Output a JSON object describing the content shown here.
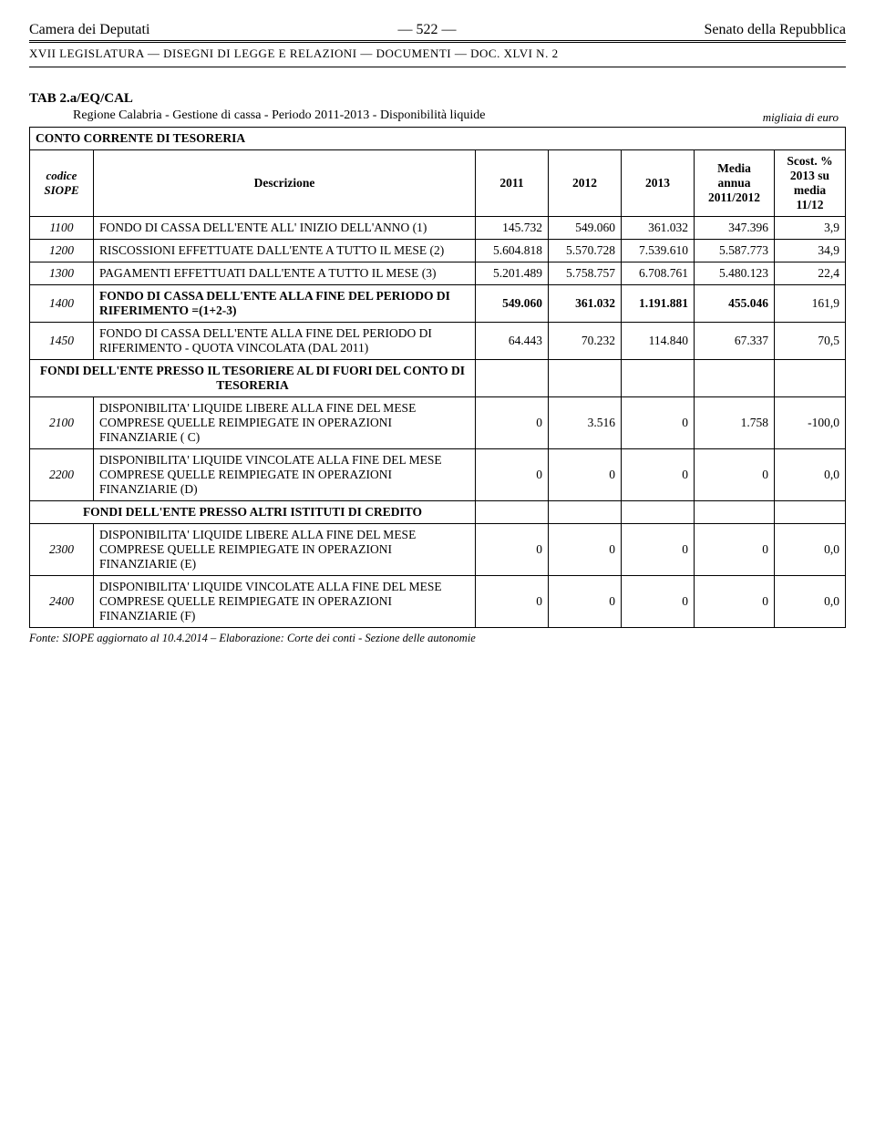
{
  "header": {
    "left": "Camera dei Deputati",
    "center": "— 522 —",
    "right": "Senato della Repubblica",
    "subheader": "XVII LEGISLATURA — DISEGNI DI LEGGE E RELAZIONI — DOCUMENTI — DOC. XLVI N. 2"
  },
  "tab": {
    "code": "TAB 2.a/EQ/CAL",
    "title": "Regione Calabria - Gestione di cassa - Periodo 2011-2013 - Disponibilità liquide",
    "unit": "migliaia di euro"
  },
  "section1_title": "CONTO CORRENTE DI TESORERIA",
  "columns": {
    "codice": "codice SIOPE",
    "descrizione": "Descrizione",
    "y2011": "2011",
    "y2012": "2012",
    "y2013": "2013",
    "media": "Media annua 2011/2012",
    "scost": "Scost. % 2013 su media 11/12"
  },
  "rows": [
    {
      "code": "1100",
      "desc": "FONDO DI CASSA DELL'ENTE ALL' INIZIO DELL'ANNO (1)",
      "v": [
        "145.732",
        "549.060",
        "361.032",
        "347.396",
        "3,9"
      ],
      "bold": false
    },
    {
      "code": "1200",
      "desc": "RISCOSSIONI EFFETTUATE DALL'ENTE A TUTTO IL MESE (2)",
      "v": [
        "5.604.818",
        "5.570.728",
        "7.539.610",
        "5.587.773",
        "34,9"
      ],
      "bold": false
    },
    {
      "code": "1300",
      "desc": "PAGAMENTI EFFETTUATI DALL'ENTE A TUTTO IL MESE (3)",
      "v": [
        "5.201.489",
        "5.758.757",
        "6.708.761",
        "5.480.123",
        "22,4"
      ],
      "bold": false
    },
    {
      "code": "1400",
      "desc": "FONDO DI CASSA DELL'ENTE ALLA FINE DEL PERIODO DI RIFERIMENTO =(1+2-3)",
      "v": [
        "549.060",
        "361.032",
        "1.191.881",
        "455.046",
        "161,9"
      ],
      "bold": true
    },
    {
      "code": "1450",
      "desc": "FONDO DI CASSA DELL'ENTE ALLA FINE DEL PERIODO DI RIFERIMENTO - QUOTA VINCOLATA (DAL 2011)",
      "v": [
        "64.443",
        "70.232",
        "114.840",
        "67.337",
        "70,5"
      ],
      "bold": false
    }
  ],
  "section2_title": "FONDI DELL'ENTE PRESSO IL TESORIERE AL DI FUORI DEL CONTO DI TESORERIA",
  "rows2": [
    {
      "code": "2100",
      "desc": "DISPONIBILITA' LIQUIDE LIBERE ALLA FINE DEL MESE COMPRESE QUELLE REIMPIEGATE IN OPERAZIONI FINANZIARIE ( C)",
      "v": [
        "0",
        "3.516",
        "0",
        "1.758",
        "-100,0"
      ]
    },
    {
      "code": "2200",
      "desc": "DISPONIBILITA' LIQUIDE VINCOLATE ALLA FINE DEL MESE COMPRESE QUELLE REIMPIEGATE IN OPERAZIONI FINANZIARIE (D)",
      "v": [
        "0",
        "0",
        "0",
        "0",
        "0,0"
      ]
    }
  ],
  "section3_title": "FONDI DELL'ENTE PRESSO ALTRI ISTITUTI DI CREDITO",
  "rows3": [
    {
      "code": "2300",
      "desc": "DISPONIBILITA' LIQUIDE LIBERE ALLA FINE DEL MESE COMPRESE QUELLE REIMPIEGATE IN OPERAZIONI FINANZIARIE (E)",
      "v": [
        "0",
        "0",
        "0",
        "0",
        "0,0"
      ]
    },
    {
      "code": "2400",
      "desc": "DISPONIBILITA' LIQUIDE VINCOLATE ALLA FINE DEL MESE COMPRESE QUELLE REIMPIEGATE IN OPERAZIONI FINANZIARIE (F)",
      "v": [
        "0",
        "0",
        "0",
        "0",
        "0,0"
      ]
    }
  ],
  "footnote": "Fonte: SIOPE aggiornato al 10.4.2014 – Elaborazione: Corte dei conti - Sezione delle autonomie"
}
